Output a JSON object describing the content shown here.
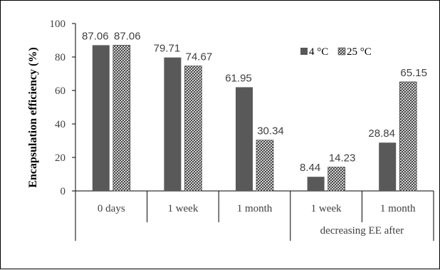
{
  "chart_data": {
    "type": "bar",
    "title": "",
    "xlabel": "",
    "ylabel": "Encapsulation efficiency (%)",
    "ylim": [
      0,
      100
    ],
    "yticks": [
      0,
      20,
      40,
      60,
      80,
      100
    ],
    "categories": [
      "0 days",
      "1 week",
      "1 month",
      "1 week",
      "1 month"
    ],
    "category_group": {
      "label": "decreasing EE after",
      "spans": [
        3,
        4
      ]
    },
    "legend_position": "top-right",
    "grid": false,
    "series": [
      {
        "name": "4 °C",
        "values": [
          87.06,
          79.71,
          61.95,
          8.44,
          28.84
        ],
        "color": "#595959",
        "pattern": "solid"
      },
      {
        "name": "25 °C",
        "values": [
          87.06,
          74.67,
          30.34,
          14.23,
          65.15
        ],
        "color": "#ffffff",
        "pattern": "crosshatch"
      }
    ]
  }
}
